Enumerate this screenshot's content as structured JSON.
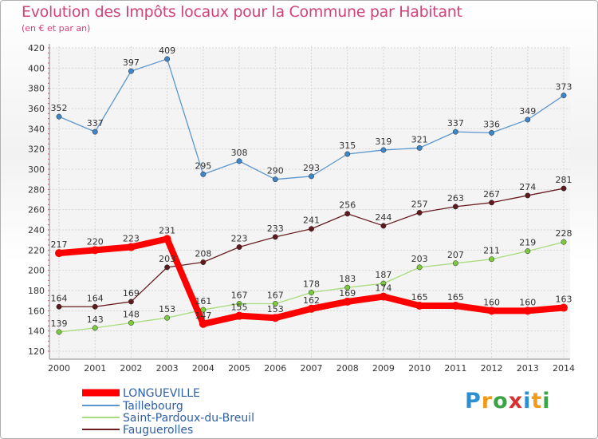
{
  "header": {
    "title": "Evolution des Impôts locaux pour la Commune par Habitant",
    "subtitle": "(en € et par an)"
  },
  "logo": {
    "text": "Proxiti"
  },
  "chart_data": {
    "type": "line",
    "x": [
      2000,
      2001,
      2002,
      2003,
      2004,
      2005,
      2006,
      2007,
      2008,
      2009,
      2010,
      2011,
      2012,
      2013,
      2014
    ],
    "ylim": [
      120,
      420
    ],
    "yticks": [
      120,
      140,
      160,
      180,
      200,
      220,
      240,
      260,
      280,
      300,
      320,
      340,
      360,
      380,
      400,
      420
    ],
    "grid": true,
    "legend_position": "bottom-left",
    "series": [
      {
        "name": "LONGUEVILLE",
        "color": "#ff0000",
        "marker_color": "#ff0000",
        "values": [
          217,
          220,
          223,
          231,
          147,
          155,
          153,
          162,
          169,
          174,
          165,
          165,
          160,
          160,
          163
        ],
        "labels": [
          "217",
          "220",
          "223",
          "231",
          "147",
          "155",
          "153",
          "162",
          "169",
          "174",
          "165",
          "165",
          "160",
          "160",
          "163"
        ]
      },
      {
        "name": "Taillebourg",
        "color": "#5b97cf",
        "marker_color": "#3f86c9",
        "values": [
          352,
          337,
          397,
          409,
          295,
          308,
          290,
          293,
          315,
          319,
          321,
          337,
          336,
          349,
          373
        ],
        "labels": [
          "352",
          "337",
          "397",
          "409",
          "295",
          "308",
          "290",
          "293",
          "315",
          "319",
          "321",
          "337",
          "336",
          "349",
          "373"
        ]
      },
      {
        "name": "Saint-Pardoux-du-Breuil",
        "color": "#a8dc7c",
        "marker_color": "#7ccb3f",
        "values": [
          139,
          143,
          148,
          153,
          161,
          167,
          167,
          178,
          183,
          187,
          203,
          207,
          211,
          219,
          228
        ],
        "labels": [
          "139",
          "143",
          "148",
          "153",
          "161",
          "167",
          "167",
          "178",
          "183",
          "187",
          "203",
          "207",
          "211",
          "219",
          "228"
        ]
      },
      {
        "name": "Fauguerolles",
        "color": "#6a1e22",
        "marker_color": "#5e1a1d",
        "values": [
          164,
          164,
          169,
          203,
          208,
          223,
          233,
          241,
          256,
          244,
          257,
          263,
          267,
          274,
          281
        ],
        "labels": [
          "164",
          "164",
          "169",
          "203",
          "208",
          "223",
          "233",
          "241",
          "256",
          "244",
          "257",
          "263",
          "267",
          "274",
          "281"
        ]
      }
    ]
  }
}
